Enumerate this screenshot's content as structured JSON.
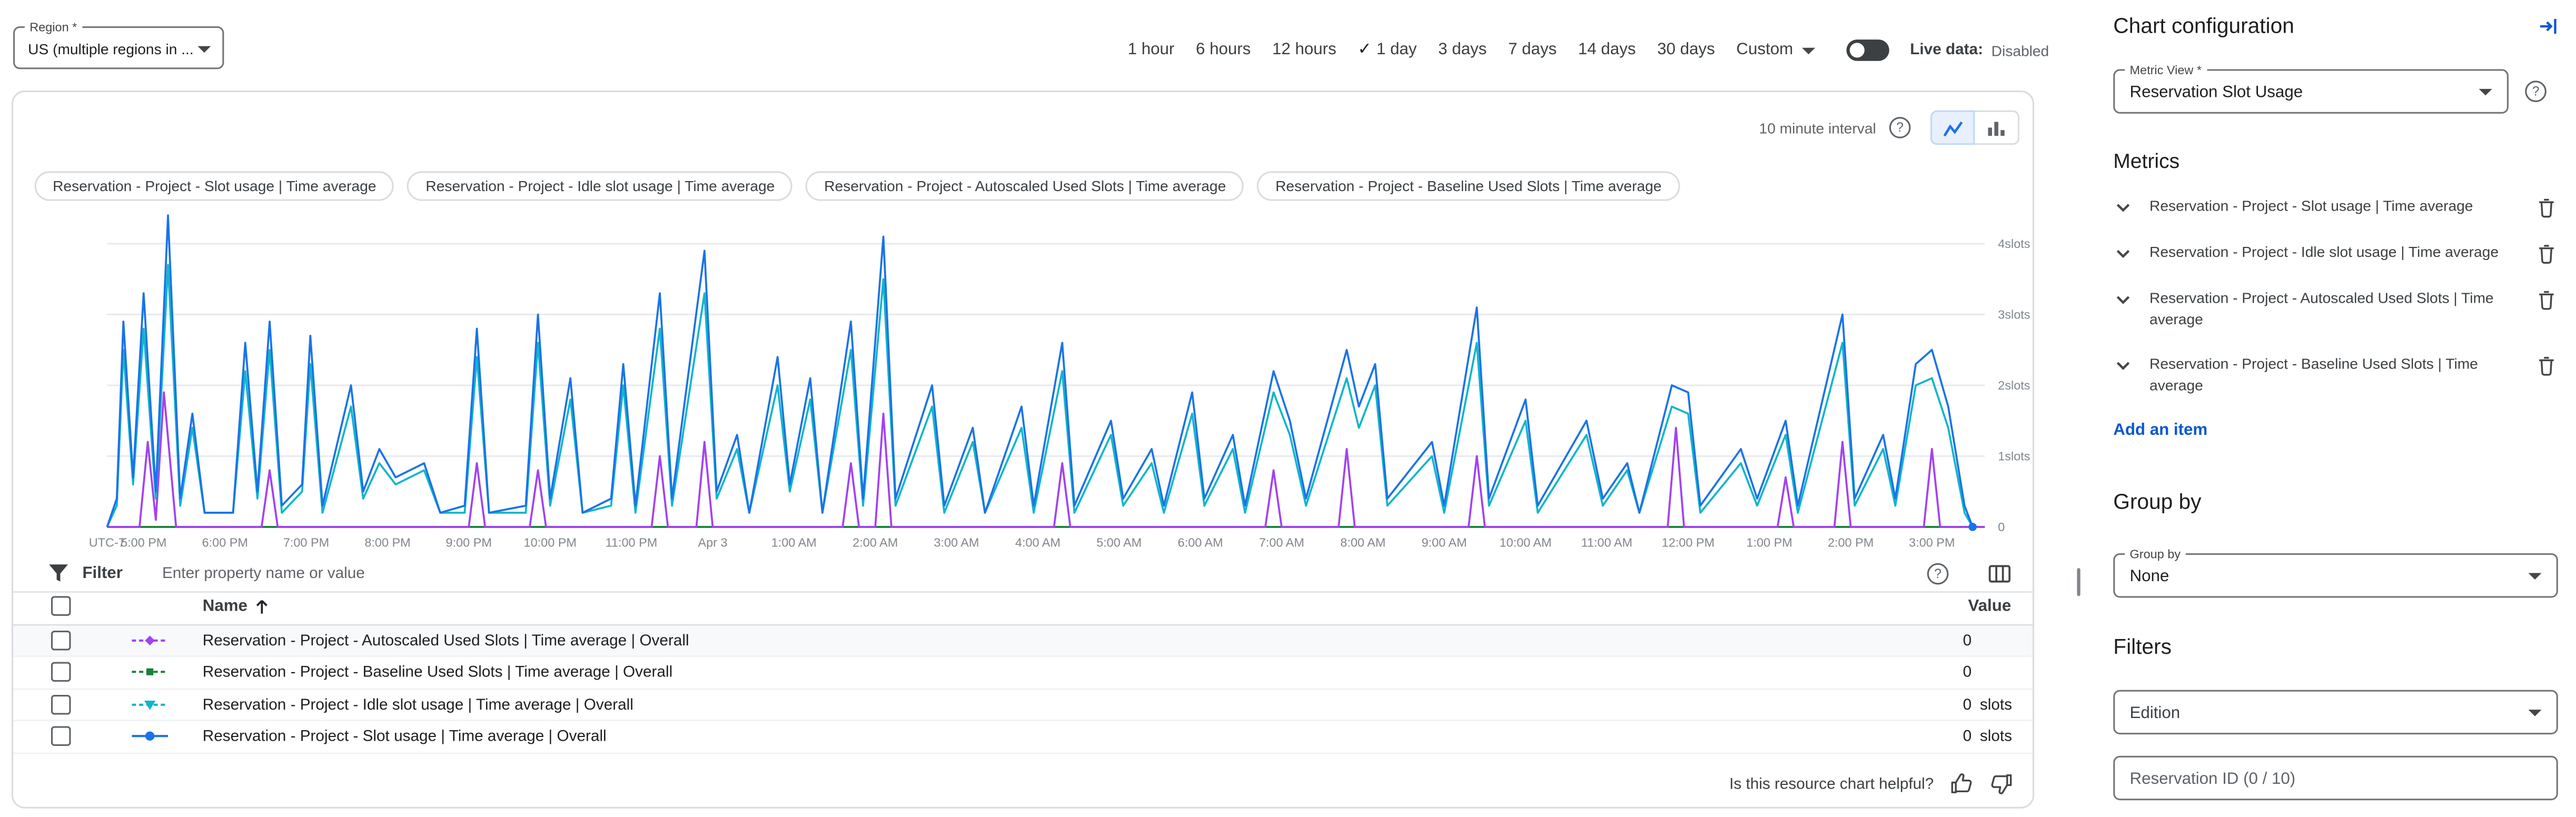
{
  "toolbar": {
    "region": {
      "label": "Region *",
      "value": "US (multiple regions in ..."
    },
    "time_ranges": [
      "1 hour",
      "6 hours",
      "12 hours",
      "1 day",
      "3 days",
      "7 days",
      "14 days",
      "30 days"
    ],
    "selected_range": "1 day",
    "custom_label": "Custom",
    "live_data_label": "Live data:",
    "live_data_status": "Disabled"
  },
  "chart": {
    "interval_label": "10 minute interval",
    "legend_chips": [
      "Reservation - Project - Slot usage | Time average",
      "Reservation - Project - Idle slot usage | Time average",
      "Reservation - Project - Autoscaled Used Slots | Time average",
      "Reservation - Project - Baseline Used Slots | Time average"
    ]
  },
  "chart_data": {
    "type": "line",
    "title": "Reservation Slot Usage",
    "ylabel": "slots",
    "ylim": [
      0,
      4.6
    ],
    "t_max": 23.1,
    "y_ticks": [
      "4slots",
      "3slots",
      "2slots",
      "1slots",
      "0"
    ],
    "x_ticks": [
      {
        "label": "UTC-7",
        "t": 0
      },
      {
        "label": "5:00 PM",
        "t": 0.45
      },
      {
        "label": "6:00 PM",
        "t": 1.45
      },
      {
        "label": "7:00 PM",
        "t": 2.45
      },
      {
        "label": "8:00 PM",
        "t": 3.45
      },
      {
        "label": "9:00 PM",
        "t": 4.45
      },
      {
        "label": "10:00 PM",
        "t": 5.45
      },
      {
        "label": "11:00 PM",
        "t": 6.45
      },
      {
        "label": "Apr 3",
        "t": 7.45
      },
      {
        "label": "1:00 AM",
        "t": 8.45
      },
      {
        "label": "2:00 AM",
        "t": 9.45
      },
      {
        "label": "3:00 AM",
        "t": 10.45
      },
      {
        "label": "4:00 AM",
        "t": 11.45
      },
      {
        "label": "5:00 AM",
        "t": 12.45
      },
      {
        "label": "6:00 AM",
        "t": 13.45
      },
      {
        "label": "7:00 AM",
        "t": 14.45
      },
      {
        "label": "8:00 AM",
        "t": 15.45
      },
      {
        "label": "9:00 AM",
        "t": 16.45
      },
      {
        "label": "10:00 AM",
        "t": 17.45
      },
      {
        "label": "11:00 AM",
        "t": 18.45
      },
      {
        "label": "12:00 PM",
        "t": 19.45
      },
      {
        "label": "1:00 PM",
        "t": 20.45
      },
      {
        "label": "2:00 PM",
        "t": 21.45
      },
      {
        "label": "3:00 PM",
        "t": 22.45
      }
    ],
    "series": [
      {
        "name": "Reservation - Project - Baseline Used Slots | Time average",
        "color": "#188038",
        "values": [
          [
            0,
            0
          ],
          [
            23.1,
            0
          ]
        ]
      },
      {
        "name": "Reservation - Project - Autoscaled Used Slots | Time average",
        "color": "#a142f4",
        "values": [
          [
            0,
            0
          ],
          [
            0.4,
            0
          ],
          [
            0.5,
            1.2
          ],
          [
            0.6,
            0.1
          ],
          [
            0.7,
            1.9
          ],
          [
            0.85,
            0
          ],
          [
            1.9,
            0
          ],
          [
            2.0,
            0.8
          ],
          [
            2.1,
            0
          ],
          [
            4.45,
            0
          ],
          [
            4.55,
            0.9
          ],
          [
            4.65,
            0
          ],
          [
            5.2,
            0
          ],
          [
            5.3,
            0.8
          ],
          [
            5.4,
            0
          ],
          [
            6.7,
            0
          ],
          [
            6.8,
            1.0
          ],
          [
            6.9,
            0
          ],
          [
            7.25,
            0
          ],
          [
            7.35,
            1.2
          ],
          [
            7.45,
            0
          ],
          [
            9.05,
            0
          ],
          [
            9.15,
            0.9
          ],
          [
            9.25,
            0
          ],
          [
            9.45,
            0
          ],
          [
            9.55,
            1.6
          ],
          [
            9.65,
            0
          ],
          [
            11.65,
            0
          ],
          [
            11.75,
            0.9
          ],
          [
            11.85,
            0
          ],
          [
            14.25,
            0
          ],
          [
            14.35,
            0.8
          ],
          [
            14.45,
            0
          ],
          [
            15.15,
            0
          ],
          [
            15.25,
            1.1
          ],
          [
            15.35,
            0
          ],
          [
            16.75,
            0
          ],
          [
            16.85,
            1.0
          ],
          [
            16.95,
            0
          ],
          [
            19.2,
            0
          ],
          [
            19.3,
            1.4
          ],
          [
            19.4,
            0
          ],
          [
            20.55,
            0
          ],
          [
            20.65,
            0.7
          ],
          [
            20.75,
            0
          ],
          [
            21.25,
            0
          ],
          [
            21.35,
            1.2
          ],
          [
            21.45,
            0
          ],
          [
            22.35,
            0
          ],
          [
            22.45,
            1.1
          ],
          [
            22.55,
            0
          ],
          [
            23.1,
            0
          ]
        ]
      },
      {
        "name": "Reservation - Project - Idle slot usage | Time average",
        "color": "#12b5cb",
        "values": [
          [
            0,
            0
          ],
          [
            0.12,
            0.3
          ],
          [
            0.2,
            2.5
          ],
          [
            0.32,
            0.6
          ],
          [
            0.45,
            2.8
          ],
          [
            0.6,
            0.4
          ],
          [
            0.75,
            3.7
          ],
          [
            0.9,
            0.3
          ],
          [
            1.05,
            1.4
          ],
          [
            1.2,
            0.2
          ],
          [
            1.55,
            0.2
          ],
          [
            1.7,
            2.2
          ],
          [
            1.85,
            0.4
          ],
          [
            2.0,
            2.5
          ],
          [
            2.15,
            0.2
          ],
          [
            2.4,
            0.5
          ],
          [
            2.5,
            2.3
          ],
          [
            2.65,
            0.2
          ],
          [
            3.0,
            1.7
          ],
          [
            3.15,
            0.4
          ],
          [
            3.35,
            0.9
          ],
          [
            3.55,
            0.6
          ],
          [
            3.9,
            0.8
          ],
          [
            4.1,
            0.2
          ],
          [
            4.4,
            0.2
          ],
          [
            4.55,
            2.4
          ],
          [
            4.7,
            0.2
          ],
          [
            5.15,
            0.2
          ],
          [
            5.3,
            2.6
          ],
          [
            5.45,
            0.3
          ],
          [
            5.7,
            1.8
          ],
          [
            5.85,
            0.2
          ],
          [
            6.2,
            0.3
          ],
          [
            6.35,
            2.0
          ],
          [
            6.5,
            0.2
          ],
          [
            6.8,
            2.8
          ],
          [
            6.95,
            0.3
          ],
          [
            7.35,
            3.3
          ],
          [
            7.5,
            0.4
          ],
          [
            7.75,
            1.1
          ],
          [
            7.9,
            0.2
          ],
          [
            8.25,
            2.0
          ],
          [
            8.4,
            0.5
          ],
          [
            8.65,
            1.8
          ],
          [
            8.8,
            0.2
          ],
          [
            9.15,
            2.5
          ],
          [
            9.3,
            0.3
          ],
          [
            9.55,
            3.5
          ],
          [
            9.7,
            0.3
          ],
          [
            10.15,
            1.7
          ],
          [
            10.3,
            0.2
          ],
          [
            10.65,
            1.2
          ],
          [
            10.8,
            0.2
          ],
          [
            11.25,
            1.4
          ],
          [
            11.4,
            0.2
          ],
          [
            11.75,
            2.2
          ],
          [
            11.9,
            0.2
          ],
          [
            12.35,
            1.3
          ],
          [
            12.5,
            0.3
          ],
          [
            12.85,
            0.9
          ],
          [
            13.0,
            0.2
          ],
          [
            13.35,
            1.6
          ],
          [
            13.5,
            0.3
          ],
          [
            13.85,
            1.1
          ],
          [
            14.0,
            0.2
          ],
          [
            14.35,
            1.9
          ],
          [
            14.55,
            1.3
          ],
          [
            14.75,
            0.3
          ],
          [
            15.25,
            2.1
          ],
          [
            15.4,
            1.4
          ],
          [
            15.6,
            2.0
          ],
          [
            15.75,
            0.3
          ],
          [
            16.3,
            1.0
          ],
          [
            16.45,
            0.2
          ],
          [
            16.85,
            2.6
          ],
          [
            17.0,
            0.3
          ],
          [
            17.45,
            1.5
          ],
          [
            17.6,
            0.2
          ],
          [
            18.2,
            1.3
          ],
          [
            18.4,
            0.3
          ],
          [
            18.7,
            0.8
          ],
          [
            18.85,
            0.2
          ],
          [
            19.25,
            1.7
          ],
          [
            19.45,
            1.6
          ],
          [
            19.6,
            0.2
          ],
          [
            20.1,
            0.9
          ],
          [
            20.3,
            0.3
          ],
          [
            20.65,
            1.3
          ],
          [
            20.8,
            0.2
          ],
          [
            21.35,
            2.6
          ],
          [
            21.5,
            0.3
          ],
          [
            21.85,
            1.1
          ],
          [
            22.0,
            0.3
          ],
          [
            22.25,
            2.0
          ],
          [
            22.45,
            2.1
          ],
          [
            22.65,
            1.4
          ],
          [
            22.85,
            0.2
          ],
          [
            22.95,
            0
          ]
        ]
      },
      {
        "name": "Reservation - Project - Slot usage | Time average",
        "color": "#1a73e8",
        "end_dot": true,
        "values": [
          [
            0,
            0
          ],
          [
            0.12,
            0.4
          ],
          [
            0.2,
            2.9
          ],
          [
            0.32,
            0.7
          ],
          [
            0.45,
            3.3
          ],
          [
            0.6,
            0.5
          ],
          [
            0.75,
            4.4
          ],
          [
            0.9,
            0.4
          ],
          [
            1.05,
            1.6
          ],
          [
            1.2,
            0.2
          ],
          [
            1.55,
            0.2
          ],
          [
            1.7,
            2.6
          ],
          [
            1.85,
            0.5
          ],
          [
            2.0,
            2.9
          ],
          [
            2.15,
            0.3
          ],
          [
            2.4,
            0.6
          ],
          [
            2.5,
            2.7
          ],
          [
            2.65,
            0.3
          ],
          [
            3.0,
            2.0
          ],
          [
            3.15,
            0.5
          ],
          [
            3.35,
            1.1
          ],
          [
            3.55,
            0.7
          ],
          [
            3.9,
            0.9
          ],
          [
            4.1,
            0.2
          ],
          [
            4.4,
            0.3
          ],
          [
            4.55,
            2.8
          ],
          [
            4.7,
            0.2
          ],
          [
            5.15,
            0.3
          ],
          [
            5.3,
            3.0
          ],
          [
            5.45,
            0.4
          ],
          [
            5.7,
            2.1
          ],
          [
            5.85,
            0.2
          ],
          [
            6.2,
            0.4
          ],
          [
            6.35,
            2.3
          ],
          [
            6.5,
            0.3
          ],
          [
            6.8,
            3.3
          ],
          [
            6.95,
            0.4
          ],
          [
            7.35,
            3.9
          ],
          [
            7.5,
            0.5
          ],
          [
            7.75,
            1.3
          ],
          [
            7.9,
            0.2
          ],
          [
            8.25,
            2.4
          ],
          [
            8.4,
            0.6
          ],
          [
            8.65,
            2.1
          ],
          [
            8.8,
            0.2
          ],
          [
            9.15,
            2.9
          ],
          [
            9.3,
            0.4
          ],
          [
            9.55,
            4.1
          ],
          [
            9.7,
            0.4
          ],
          [
            10.15,
            2.0
          ],
          [
            10.3,
            0.3
          ],
          [
            10.65,
            1.4
          ],
          [
            10.8,
            0.2
          ],
          [
            11.25,
            1.7
          ],
          [
            11.4,
            0.3
          ],
          [
            11.75,
            2.6
          ],
          [
            11.9,
            0.3
          ],
          [
            12.35,
            1.5
          ],
          [
            12.5,
            0.4
          ],
          [
            12.85,
            1.1
          ],
          [
            13.0,
            0.3
          ],
          [
            13.35,
            1.9
          ],
          [
            13.5,
            0.4
          ],
          [
            13.85,
            1.3
          ],
          [
            14.0,
            0.3
          ],
          [
            14.35,
            2.2
          ],
          [
            14.55,
            1.5
          ],
          [
            14.75,
            0.4
          ],
          [
            15.25,
            2.5
          ],
          [
            15.4,
            1.7
          ],
          [
            15.6,
            2.3
          ],
          [
            15.75,
            0.4
          ],
          [
            16.3,
            1.2
          ],
          [
            16.45,
            0.3
          ],
          [
            16.85,
            3.1
          ],
          [
            17.0,
            0.4
          ],
          [
            17.45,
            1.8
          ],
          [
            17.6,
            0.3
          ],
          [
            18.2,
            1.5
          ],
          [
            18.4,
            0.4
          ],
          [
            18.7,
            0.9
          ],
          [
            18.85,
            0.2
          ],
          [
            19.25,
            2.0
          ],
          [
            19.45,
            1.9
          ],
          [
            19.6,
            0.3
          ],
          [
            20.1,
            1.1
          ],
          [
            20.3,
            0.4
          ],
          [
            20.65,
            1.5
          ],
          [
            20.8,
            0.3
          ],
          [
            21.35,
            3.0
          ],
          [
            21.5,
            0.4
          ],
          [
            21.85,
            1.3
          ],
          [
            22.0,
            0.4
          ],
          [
            22.25,
            2.3
          ],
          [
            22.45,
            2.5
          ],
          [
            22.65,
            1.7
          ],
          [
            22.85,
            0.3
          ],
          [
            22.95,
            0
          ]
        ]
      }
    ]
  },
  "filter": {
    "label": "Filter",
    "placeholder": "Enter property name or value"
  },
  "table": {
    "columns": [
      "Name",
      "Value"
    ],
    "rows": [
      {
        "name": "Reservation - Project - Autoscaled Used Slots | Time average | Overall",
        "value": "0",
        "unit": "",
        "color": "#a142f4",
        "marker": "diamond",
        "line_style": "dashed"
      },
      {
        "name": "Reservation - Project - Baseline Used Slots | Time average | Overall",
        "value": "0",
        "unit": "",
        "color": "#188038",
        "marker": "square",
        "line_style": "dashed"
      },
      {
        "name": "Reservation - Project - Idle slot usage | Time average | Overall",
        "value": "0",
        "unit": "slots",
        "color": "#12b5cb",
        "marker": "triangle-down",
        "line_style": "dashed"
      },
      {
        "name": "Reservation - Project - Slot usage | Time average | Overall",
        "value": "0",
        "unit": "slots",
        "color": "#1a73e8",
        "marker": "circle",
        "line_style": "solid"
      }
    ]
  },
  "feedback": {
    "question": "Is this resource chart helpful?"
  },
  "config_panel": {
    "title": "Chart configuration",
    "metric_view": {
      "label": "Metric View *",
      "value": "Reservation Slot Usage"
    },
    "metrics_heading": "Metrics",
    "metrics": [
      "Reservation - Project - Slot usage | Time average",
      "Reservation - Project - Idle slot usage | Time average",
      "Reservation - Project - Autoscaled Used Slots | Time average",
      "Reservation - Project - Baseline Used Slots | Time average"
    ],
    "add_item_label": "Add an item",
    "group_by_heading": "Group by",
    "group_by": {
      "label": "Group by",
      "value": "None"
    },
    "filters_heading": "Filters",
    "edition_label": "Edition",
    "reservation_id_label": "Reservation ID (0 / 10)"
  },
  "colors": {
    "accent_blue": "#1a73e8",
    "link_blue": "#0b57d0",
    "grid": "#e8eaed",
    "border": "#dadce0"
  }
}
